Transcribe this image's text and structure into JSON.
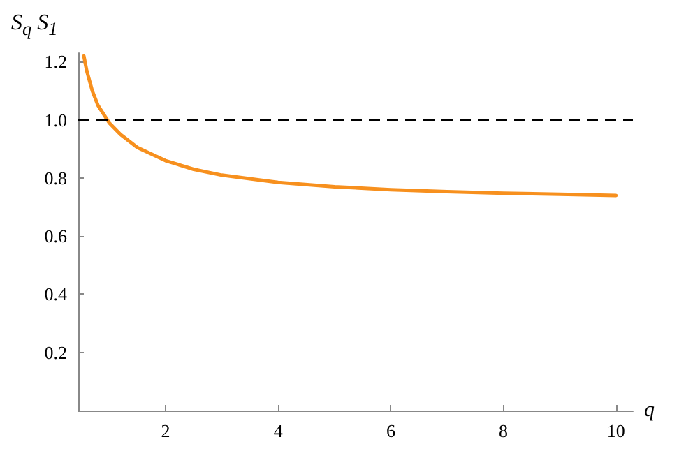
{
  "chart_data": {
    "type": "line",
    "xlabel": "q",
    "ylabel": "S$_{q}$ S$_{1}$",
    "xlim": [
      0.45,
      10.3
    ],
    "ylim": [
      0,
      1.23
    ],
    "xticks": [
      2,
      4,
      6,
      8,
      10
    ],
    "yticks": [
      0.2,
      0.4,
      0.6,
      0.8,
      {
        "value": 1,
        "label": "1.0"
      },
      1.2
    ],
    "x": [
      0.55,
      0.6,
      0.7,
      0.8,
      0.9,
      1,
      1.2,
      1.5,
      2,
      2.5,
      3,
      4,
      5,
      6,
      7,
      8,
      9,
      10
    ],
    "series": [
      {
        "color": "#f7901e",
        "values": [
          1.22,
          1.17,
          1.1,
          1.05,
          1.02,
          0.99,
          0.95,
          0.905,
          0.86,
          0.83,
          0.81,
          0.785,
          0.77,
          0.76,
          0.753,
          0.748,
          0.744,
          0.74
        ]
      }
    ],
    "ref_lines": [
      {
        "axis": "y",
        "value": 1.0,
        "color": "#000000",
        "line_style": "dashed"
      }
    ],
    "grid": false,
    "marker": "none",
    "line_style": "solid"
  }
}
